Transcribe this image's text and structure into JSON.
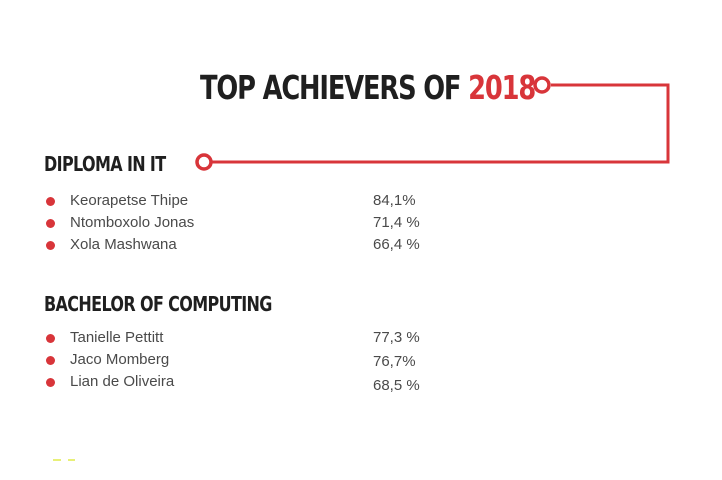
{
  "header": {
    "title_prefix": "TOP ACHIEVERS OF ",
    "title_year": "2018"
  },
  "colors": {
    "accent": "#d8353a",
    "text": "#1f1f1f",
    "body_text": "#4a4a4a"
  },
  "sections": [
    {
      "heading": "DIPLOMA IN IT",
      "achievers": [
        {
          "name": "Keorapetse Thipe",
          "score": "84,1%"
        },
        {
          "name": "Ntomboxolo Jonas",
          "score": "71,4 %"
        },
        {
          "name": "Xola Mashwana",
          "score": "66,4 %"
        }
      ]
    },
    {
      "heading": "BACHELOR OF COMPUTING",
      "achievers": [
        {
          "name": "Tanielle Pettitt",
          "score": "77,3 %"
        },
        {
          "name": "Jaco Momberg",
          "score": "76,7%"
        },
        {
          "name": "Lian de Oliveira",
          "score": "68,5 %"
        }
      ]
    }
  ]
}
